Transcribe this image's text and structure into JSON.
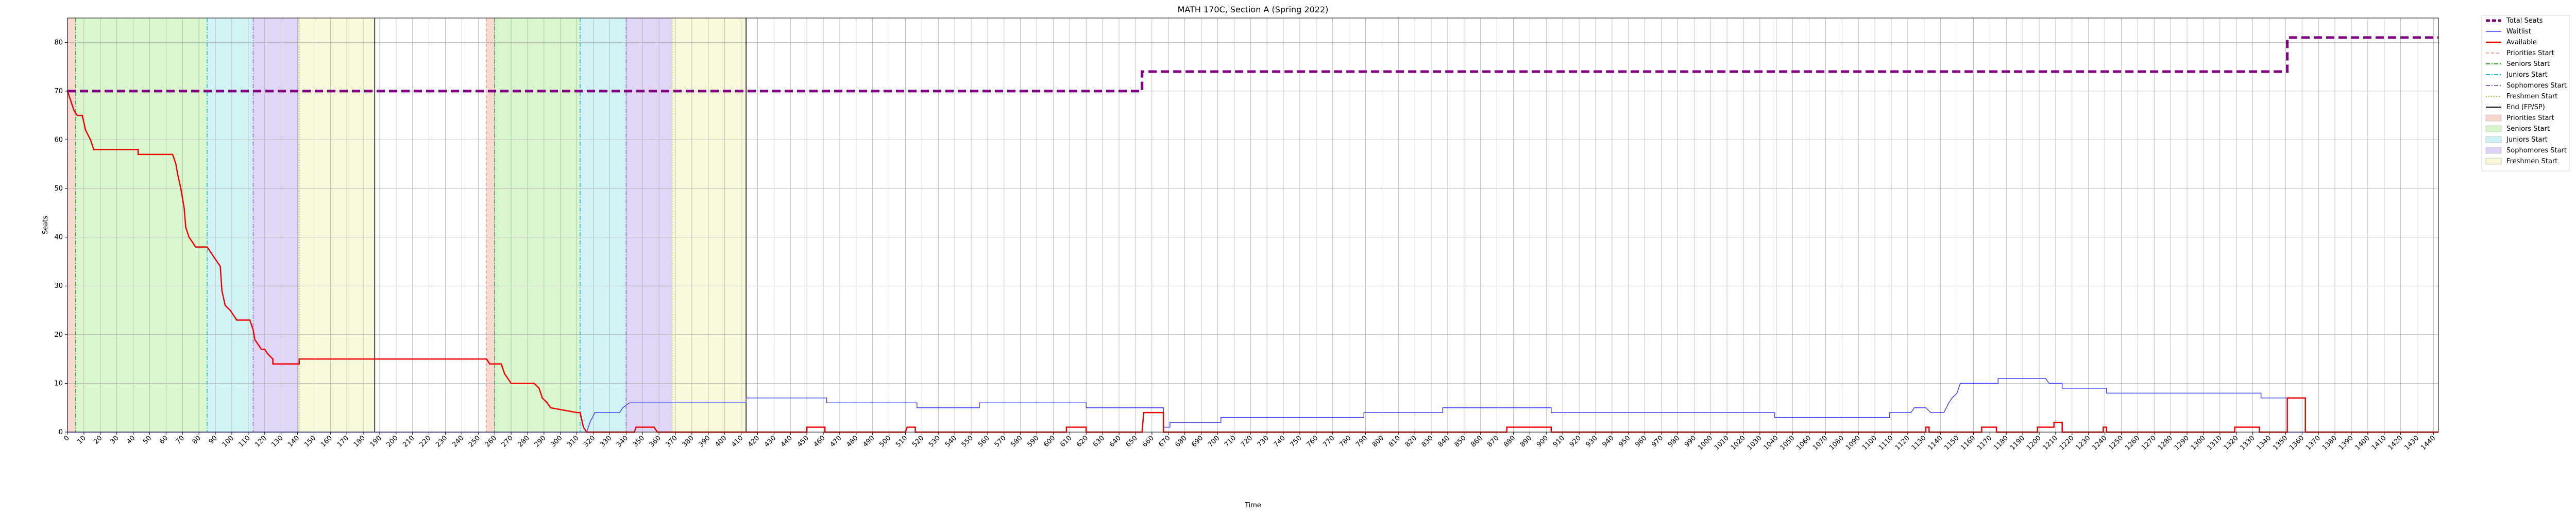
{
  "chart_data": {
    "type": "step-line",
    "title": "MATH 170C, Section A (Spring 2022)",
    "x_label": "Time",
    "y_label": "Seats",
    "xlim": [
      0,
      1443
    ],
    "ylim": [
      0,
      85
    ],
    "yticks": [
      0,
      10,
      20,
      30,
      40,
      50,
      60,
      70,
      80
    ],
    "xticks": [
      0,
      10,
      20,
      30,
      40,
      50,
      60,
      70,
      80,
      90,
      100,
      110,
      120,
      130,
      140,
      150,
      160,
      170,
      180,
      190,
      200,
      210,
      220,
      230,
      240,
      250,
      260,
      270,
      280,
      290,
      300,
      310,
      320,
      330,
      340,
      350,
      360,
      370,
      380,
      390,
      400,
      410,
      420,
      430,
      440,
      450,
      460,
      470,
      480,
      490,
      500,
      510,
      520,
      530,
      540,
      550,
      560,
      570,
      580,
      590,
      600,
      610,
      620,
      630,
      640,
      650,
      660,
      670,
      680,
      690,
      700,
      710,
      720,
      730,
      740,
      750,
      760,
      770,
      780,
      790,
      800,
      810,
      820,
      830,
      840,
      850,
      860,
      870,
      880,
      890,
      900,
      910,
      920,
      930,
      940,
      950,
      960,
      970,
      980,
      990,
      1000,
      1010,
      1020,
      1030,
      1040,
      1050,
      1060,
      1070,
      1080,
      1090,
      1100,
      1110,
      1120,
      1130,
      1140,
      1150,
      1160,
      1170,
      1180,
      1190,
      1200,
      1210,
      1220,
      1230,
      1240,
      1250,
      1260,
      1270,
      1280,
      1290,
      1300,
      1310,
      1320,
      1330,
      1340,
      1350,
      1360,
      1370,
      1380,
      1390,
      1400,
      1410,
      1420,
      1430,
      1440
    ],
    "grid": true,
    "legend": "outside-upper-right",
    "phases": [
      {
        "name": "Priorities Start",
        "color": "#f8d5cc",
        "ranges": [
          [
            0,
            5
          ],
          [
            255,
            260
          ]
        ]
      },
      {
        "name": "Seniors Start",
        "color": "#d6f5c9",
        "ranges": [
          [
            5,
            85
          ],
          [
            260,
            312
          ]
        ]
      },
      {
        "name": "Juniors Start",
        "color": "#cdf2f4",
        "ranges": [
          [
            85,
            113
          ],
          [
            312,
            340
          ]
        ]
      },
      {
        "name": "Sophomores Start",
        "color": "#ddd1f5",
        "ranges": [
          [
            113,
            141
          ],
          [
            340,
            368
          ]
        ]
      },
      {
        "name": "Freshmen Start",
        "color": "#f7f7d6",
        "ranges": [
          [
            141,
            187
          ],
          [
            368,
            413
          ]
        ]
      }
    ],
    "markers": [
      {
        "name": "Priorities Start",
        "color": "#f0a090",
        "dash": "6 4",
        "x": [
          0,
          255
        ]
      },
      {
        "name": "Seniors Start",
        "color": "#2ca02c",
        "dash": "8 3 2 3",
        "x": [
          5,
          260
        ]
      },
      {
        "name": "Juniors Start",
        "color": "#17becf",
        "dash": "8 3 2 3",
        "x": [
          85,
          312
        ]
      },
      {
        "name": "Sophomores Start",
        "color": "#9467bd",
        "dash": "8 3 2 3",
        "x": [
          113,
          340
        ]
      },
      {
        "name": "Freshmen Start",
        "color": "#bcbd22",
        "dash": "2 3",
        "x": [
          141,
          368
        ]
      },
      {
        "name": "End (FP/SP)",
        "color": "#000000",
        "dash": "none",
        "x": [
          187,
          413
        ]
      }
    ],
    "series": [
      {
        "name": "Total Seats",
        "color": "#800080",
        "width": 5,
        "dash": "16 8",
        "x": [
          0,
          654,
          654,
          1351,
          1351,
          1443
        ],
        "values": [
          70,
          70,
          74,
          74,
          81,
          81
        ]
      },
      {
        "name": "Waitlist",
        "color": "#4040ff",
        "width": 1.5,
        "dash": "none",
        "x": [
          0,
          316,
          318,
          321,
          336,
          338,
          342,
          413,
          413,
          462,
          462,
          517,
          517,
          555,
          555,
          620,
          620,
          667,
          667,
          671,
          671,
          702,
          702,
          789,
          789,
          837,
          837,
          903,
          903,
          1039,
          1039,
          1109,
          1109,
          1122,
          1124,
          1131,
          1134,
          1142,
          1145,
          1147,
          1150,
          1152,
          1175,
          1175,
          1204,
          1206,
          1214,
          1214,
          1241,
          1241,
          1335,
          1335,
          1351,
          1351,
          1443
        ],
        "values": [
          0,
          0,
          2,
          4,
          4,
          5,
          6,
          6,
          7,
          7,
          6,
          6,
          5,
          5,
          6,
          6,
          5,
          5,
          1,
          1,
          2,
          2,
          3,
          3,
          4,
          4,
          5,
          5,
          4,
          4,
          3,
          3,
          4,
          4,
          5,
          5,
          4,
          4,
          6,
          7,
          8,
          10,
          10,
          11,
          11,
          10,
          10,
          9,
          9,
          8,
          8,
          7,
          7,
          0,
          0
        ]
      },
      {
        "name": "Available",
        "color": "#ee0000",
        "width": 2.5,
        "dash": "none",
        "x": [
          0,
          2,
          4,
          6,
          9,
          11,
          14,
          16,
          43,
          43,
          64,
          66,
          67,
          69,
          71,
          72,
          74,
          76,
          78,
          85,
          87,
          89,
          91,
          93,
          94,
          96,
          99,
          101,
          103,
          111,
          113,
          114,
          116,
          118,
          120,
          122,
          125,
          125,
          141,
          141,
          255,
          257,
          264,
          266,
          268,
          270,
          284,
          287,
          289,
          292,
          294,
          310,
          312,
          314,
          316,
          345,
          346,
          357,
          359,
          450,
          450,
          461,
          461,
          510,
          511,
          516,
          516,
          608,
          608,
          620,
          620,
          654,
          655,
          667,
          667,
          876,
          876,
          903,
          903,
          1131,
          1131,
          1133,
          1133,
          1165,
          1165,
          1174,
          1174,
          1199,
          1199,
          1209,
          1209,
          1214,
          1214,
          1239,
          1239,
          1241,
          1241,
          1319,
          1319,
          1334,
          1334,
          1351,
          1351,
          1362,
          1362,
          1443
        ],
        "values": [
          70,
          68,
          66,
          65,
          65,
          62,
          60,
          58,
          58,
          57,
          57,
          55,
          53,
          50,
          46,
          42,
          40,
          39,
          38,
          38,
          37,
          36,
          35,
          34,
          29,
          26,
          25,
          24,
          23,
          23,
          21,
          19,
          18,
          17,
          17,
          16,
          15,
          14,
          14,
          15,
          15,
          14,
          14,
          12,
          11,
          10,
          10,
          9,
          7,
          6,
          5,
          4,
          4,
          1,
          0,
          0,
          1,
          1,
          0,
          0,
          1,
          1,
          0,
          0,
          1,
          1,
          0,
          0,
          1,
          1,
          0,
          0,
          4,
          4,
          0,
          0,
          1,
          1,
          0,
          0,
          1,
          1,
          0,
          0,
          1,
          1,
          0,
          0,
          1,
          1,
          2,
          2,
          0,
          0,
          1,
          1,
          0,
          0,
          1,
          1,
          0,
          0,
          7,
          7,
          0,
          0
        ]
      }
    ]
  }
}
